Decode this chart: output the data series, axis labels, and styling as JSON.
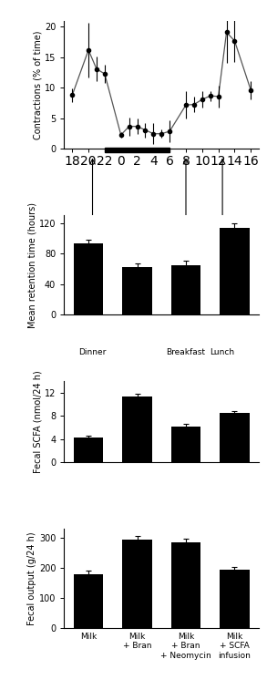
{
  "line_x_raw": [
    18,
    20,
    21,
    22,
    0,
    1,
    2,
    3,
    4,
    5,
    6,
    8,
    9,
    10,
    11,
    12,
    13,
    14,
    16
  ],
  "line_y": [
    8.8,
    16.2,
    13.1,
    12.3,
    2.3,
    3.7,
    3.7,
    3.1,
    2.5,
    2.5,
    2.9,
    7.2,
    7.3,
    8.1,
    8.7,
    8.6,
    19.1,
    17.7,
    9.6
  ],
  "line_yerr": [
    1.1,
    4.5,
    2.0,
    1.5,
    0.5,
    1.5,
    1.3,
    1.2,
    1.7,
    0.7,
    1.8,
    2.2,
    1.2,
    1.3,
    0.8,
    1.8,
    5.0,
    3.5,
    1.5
  ],
  "xtick_labels": [
    "18",
    "20",
    "22",
    "0",
    "2",
    "4",
    "6",
    "8",
    "10",
    "12",
    "14",
    "16"
  ],
  "xtick_positions_raw": [
    18,
    20,
    22,
    0,
    2,
    4,
    6,
    8,
    10,
    12,
    14,
    16
  ],
  "ytick_line": [
    0,
    5,
    10,
    15,
    20
  ],
  "ylabel_line": "Contractions (% of time)",
  "bar_categories": [
    "Milk",
    "Milk\n+ Bran",
    "Milk\n+ Bran\n+ Neomycin",
    "Milk\n+ SCFA\ninfusion"
  ],
  "retention_values": [
    93,
    62,
    65,
    113
  ],
  "retention_errors": [
    5,
    5,
    5,
    6
  ],
  "retention_yticks": [
    0,
    40,
    80,
    120
  ],
  "retention_ylabel": "Mean retention time (hours)",
  "scfa_values": [
    4.3,
    11.3,
    6.2,
    8.5
  ],
  "scfa_errors": [
    0.25,
    0.4,
    0.35,
    0.35
  ],
  "scfa_yticks": [
    0,
    4,
    8,
    12
  ],
  "scfa_ylabel": "Fecal SCFA (nmol/24 h)",
  "fecal_values": [
    180,
    295,
    285,
    195
  ],
  "fecal_errors": [
    10,
    12,
    12,
    8
  ],
  "fecal_yticks": [
    0,
    100,
    200,
    300
  ],
  "fecal_ylabel": "Fecal output (g/24 h)",
  "bar_color": "#000000",
  "bg_color": "#ffffff",
  "line_color": "#555555",
  "marker_color": "#000000"
}
